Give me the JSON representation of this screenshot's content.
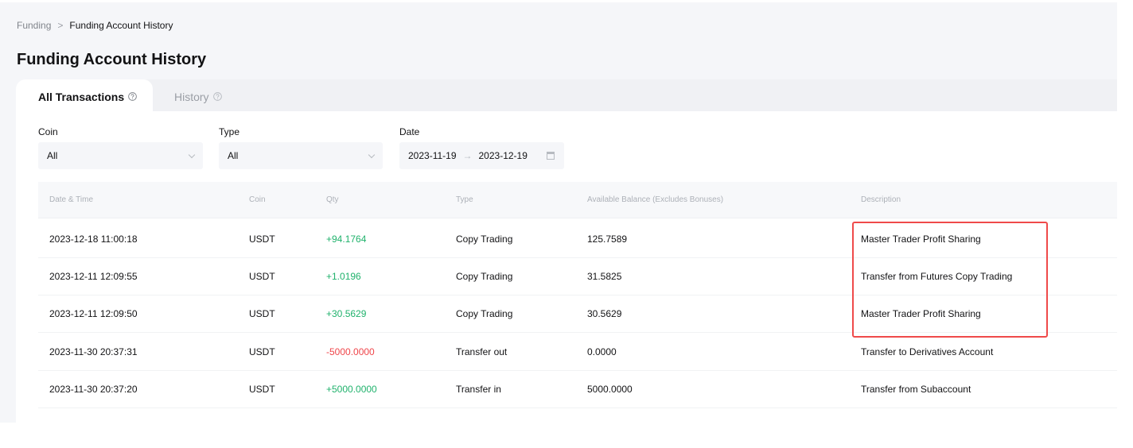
{
  "breadcrumb": {
    "parent": "Funding",
    "separator": ">",
    "current": "Funding Account History"
  },
  "page_title": "Funding Account History",
  "tabs": [
    {
      "label": "All Transactions",
      "active": true,
      "icon": "question-circle-icon"
    },
    {
      "label": "History",
      "active": false,
      "icon": "question-circle-icon"
    }
  ],
  "filters": {
    "coin": {
      "label": "Coin",
      "value": "All"
    },
    "type": {
      "label": "Type",
      "value": "All"
    },
    "date": {
      "label": "Date",
      "start": "2023-11-19",
      "arrow": "→",
      "end": "2023-12-19"
    }
  },
  "table": {
    "columns": [
      "Date & Time",
      "Coin",
      "Qty",
      "Type",
      "Available Balance (Excludes Bonuses)",
      "Description"
    ],
    "rows": [
      {
        "datetime": "2023-12-18 11:00:18",
        "coin": "USDT",
        "qty": "+94.1764",
        "type": "Copy Trading",
        "balance": "125.7589",
        "description": "Master Trader Profit Sharing"
      },
      {
        "datetime": "2023-12-11 12:09:55",
        "coin": "USDT",
        "qty": "+1.0196",
        "type": "Copy Trading",
        "balance": "31.5825",
        "description": "Transfer from Futures Copy Trading"
      },
      {
        "datetime": "2023-12-11 12:09:50",
        "coin": "USDT",
        "qty": "+30.5629",
        "type": "Copy Trading",
        "balance": "30.5629",
        "description": "Master Trader Profit Sharing"
      },
      {
        "datetime": "2023-11-30 20:37:31",
        "coin": "USDT",
        "qty": "-5000.0000",
        "type": "Transfer out",
        "balance": "0.0000",
        "description": "Transfer to Derivatives Account"
      },
      {
        "datetime": "2023-11-30 20:37:20",
        "coin": "USDT",
        "qty": "+5000.0000",
        "type": "Transfer in",
        "balance": "5000.0000",
        "description": "Transfer from Subaccount"
      }
    ]
  },
  "colors": {
    "positive": "#20b26c",
    "negative": "#ef454a",
    "highlight": "#ef4a4a"
  }
}
